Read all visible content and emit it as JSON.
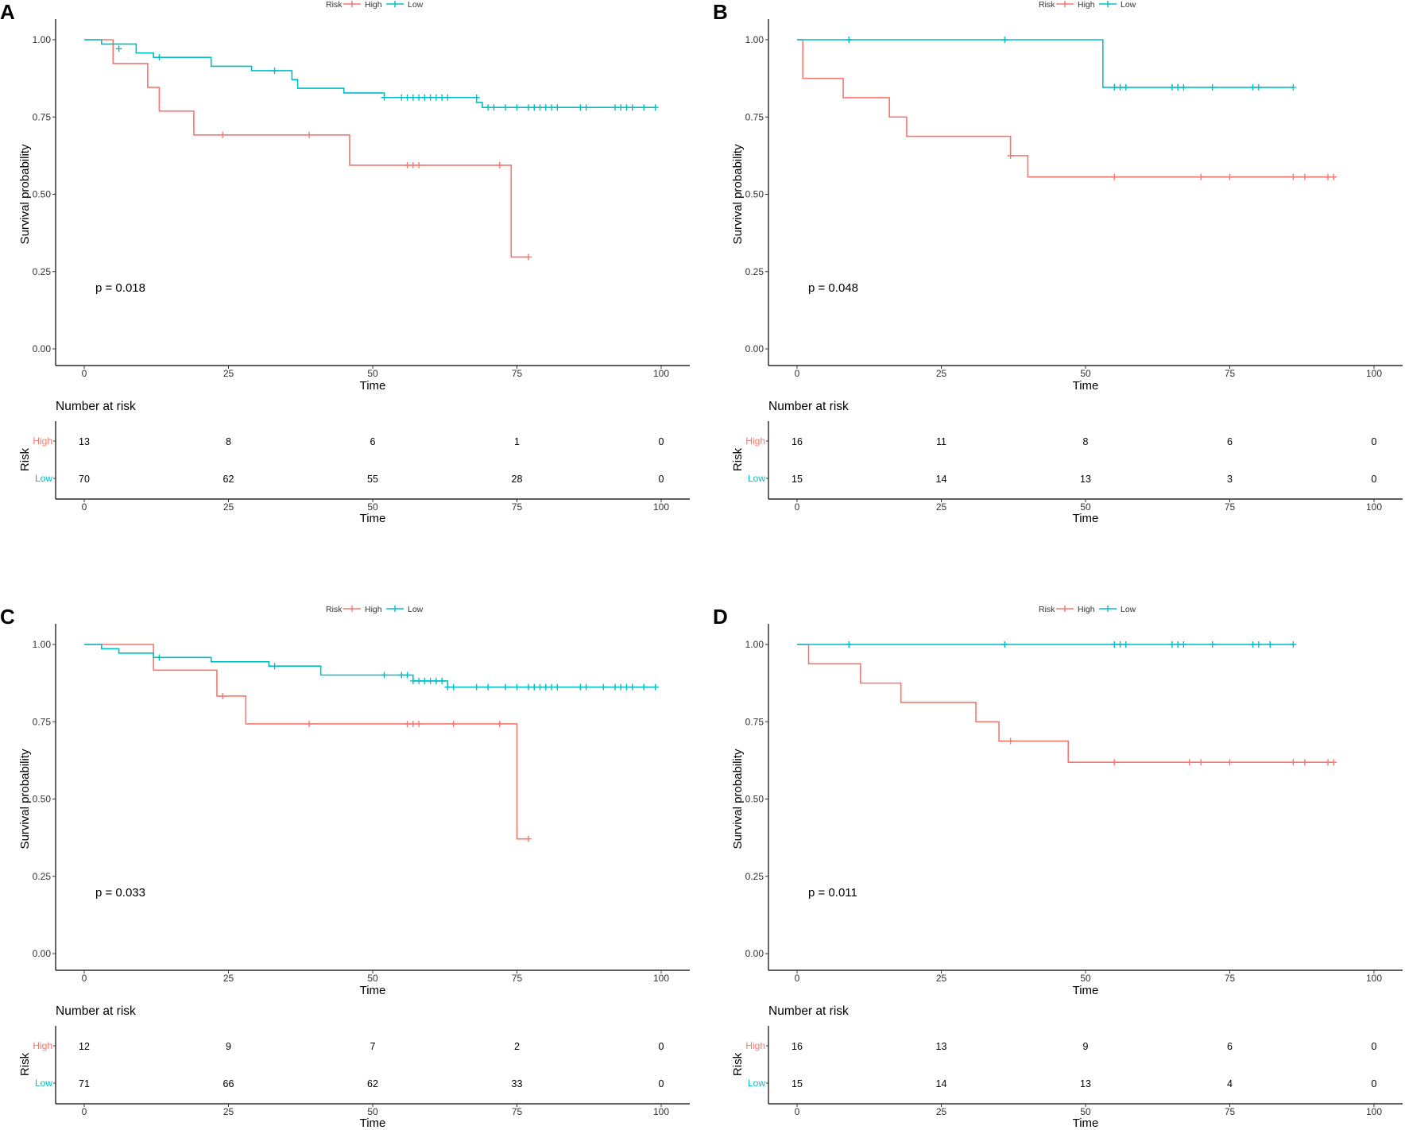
{
  "colors": {
    "high": "#F8766D",
    "low": "#00BFC4"
  },
  "chart_data": [
    {
      "panel": "A",
      "type": "line",
      "legend": {
        "title": "Risk",
        "entries": [
          "High",
          "Low"
        ],
        "placement": "top"
      },
      "xlabel": "Time",
      "ylabel": "Survival probability",
      "xlim": [
        0,
        100
      ],
      "ylim": [
        0,
        1
      ],
      "xticks": [
        "0",
        "25",
        "50",
        "75",
        "100"
      ],
      "yticks": [
        "0.00",
        "0.25",
        "0.50",
        "0.75",
        "1.00"
      ],
      "pvalue": "p = 0.018",
      "series": [
        {
          "name": "High",
          "steps": [
            [
              0,
              1
            ],
            [
              5,
              0.923
            ],
            [
              11,
              0.846
            ],
            [
              13,
              0.769
            ],
            [
              19,
              0.692
            ],
            [
              46,
              0.594
            ],
            [
              74,
              0.297
            ],
            [
              77,
              0.297
            ]
          ],
          "censors": [
            [
              24,
              0.692
            ],
            [
              39,
              0.692
            ],
            [
              56,
              0.594
            ],
            [
              57,
              0.594
            ],
            [
              58,
              0.594
            ],
            [
              72,
              0.594
            ],
            [
              77,
              0.297
            ]
          ]
        },
        {
          "name": "Low",
          "steps": [
            [
              0,
              1
            ],
            [
              3,
              0.986
            ],
            [
              9,
              0.957
            ],
            [
              12,
              0.943
            ],
            [
              22,
              0.914
            ],
            [
              29,
              0.9
            ],
            [
              36,
              0.871
            ],
            [
              37,
              0.843
            ],
            [
              45,
              0.828
            ],
            [
              52,
              0.813
            ],
            [
              68,
              0.797
            ],
            [
              69,
              0.781
            ],
            [
              99,
              0.781
            ]
          ],
          "censors": [
            [
              6,
              0.971
            ],
            [
              13,
              0.943
            ],
            [
              33,
              0.9
            ],
            [
              52,
              0.813
            ],
            [
              55,
              0.813
            ],
            [
              56,
              0.813
            ],
            [
              57,
              0.813
            ],
            [
              58,
              0.813
            ],
            [
              59,
              0.813
            ],
            [
              60,
              0.813
            ],
            [
              61,
              0.813
            ],
            [
              62,
              0.813
            ],
            [
              63,
              0.813
            ],
            [
              68,
              0.813
            ],
            [
              70,
              0.781
            ],
            [
              71,
              0.781
            ],
            [
              73,
              0.781
            ],
            [
              75,
              0.781
            ],
            [
              77,
              0.781
            ],
            [
              78,
              0.781
            ],
            [
              79,
              0.781
            ],
            [
              80,
              0.781
            ],
            [
              81,
              0.781
            ],
            [
              82,
              0.781
            ],
            [
              86,
              0.781
            ],
            [
              87,
              0.781
            ],
            [
              92,
              0.781
            ],
            [
              93,
              0.781
            ],
            [
              94,
              0.781
            ],
            [
              95,
              0.781
            ],
            [
              97,
              0.781
            ],
            [
              99,
              0.781
            ]
          ]
        }
      ],
      "risk_table": {
        "title": "Number at risk",
        "ylabel": "Risk",
        "xlabel": "Time",
        "times": [
          0,
          25,
          50,
          75,
          100
        ],
        "rows": [
          {
            "label": "High",
            "counts": [
              "13",
              "8",
              "6",
              "1",
              "0"
            ]
          },
          {
            "label": "Low",
            "counts": [
              "70",
              "62",
              "55",
              "28",
              "0"
            ]
          }
        ]
      }
    },
    {
      "panel": "B",
      "type": "line",
      "legend": {
        "title": "Risk",
        "entries": [
          "High",
          "Low"
        ],
        "placement": "top"
      },
      "xlabel": "Time",
      "ylabel": "Survival probability",
      "xlim": [
        0,
        100
      ],
      "ylim": [
        0,
        1
      ],
      "xticks": [
        "0",
        "25",
        "50",
        "75",
        "100"
      ],
      "yticks": [
        "0.00",
        "0.25",
        "0.50",
        "0.75",
        "1.00"
      ],
      "pvalue": "p = 0.048",
      "series": [
        {
          "name": "High",
          "steps": [
            [
              0,
              1
            ],
            [
              1,
              0.875
            ],
            [
              8,
              0.8125
            ],
            [
              16,
              0.75
            ],
            [
              19,
              0.6875
            ],
            [
              37,
              0.625
            ],
            [
              40,
              0.556
            ],
            [
              93,
              0.556
            ]
          ],
          "censors": [
            [
              37,
              0.625
            ],
            [
              55,
              0.556
            ],
            [
              70,
              0.556
            ],
            [
              75,
              0.556
            ],
            [
              86,
              0.556
            ],
            [
              88,
              0.556
            ],
            [
              92,
              0.556
            ],
            [
              93,
              0.556
            ]
          ]
        },
        {
          "name": "Low",
          "steps": [
            [
              0,
              1
            ],
            [
              53,
              0.846
            ],
            [
              86,
              0.846
            ]
          ],
          "censors": [
            [
              9,
              1
            ],
            [
              36,
              1
            ],
            [
              55,
              0.846
            ],
            [
              56,
              0.846
            ],
            [
              57,
              0.846
            ],
            [
              65,
              0.846
            ],
            [
              66,
              0.846
            ],
            [
              67,
              0.846
            ],
            [
              72,
              0.846
            ],
            [
              79,
              0.846
            ],
            [
              80,
              0.846
            ],
            [
              86,
              0.846
            ]
          ]
        }
      ],
      "risk_table": {
        "title": "Number at risk",
        "ylabel": "Risk",
        "xlabel": "Time",
        "times": [
          0,
          25,
          50,
          75,
          100
        ],
        "rows": [
          {
            "label": "High",
            "counts": [
              "16",
              "11",
              "8",
              "6",
              "0"
            ]
          },
          {
            "label": "Low",
            "counts": [
              "15",
              "14",
              "13",
              "3",
              "0"
            ]
          }
        ]
      }
    },
    {
      "panel": "C",
      "type": "line",
      "legend": {
        "title": "Risk",
        "entries": [
          "High",
          "Low"
        ],
        "placement": "top"
      },
      "xlabel": "Time",
      "ylabel": "Survival probability",
      "xlim": [
        0,
        100
      ],
      "ylim": [
        0,
        1
      ],
      "xticks": [
        "0",
        "25",
        "50",
        "75",
        "100"
      ],
      "yticks": [
        "0.00",
        "0.25",
        "0.50",
        "0.75",
        "1.00"
      ],
      "pvalue": "p = 0.033",
      "series": [
        {
          "name": "High",
          "steps": [
            [
              0,
              1
            ],
            [
              12,
              0.917
            ],
            [
              23,
              0.833
            ],
            [
              28,
              0.743
            ],
            [
              75,
              0.371
            ],
            [
              77,
              0.371
            ]
          ],
          "censors": [
            [
              24,
              0.833
            ],
            [
              39,
              0.743
            ],
            [
              56,
              0.743
            ],
            [
              57,
              0.743
            ],
            [
              58,
              0.743
            ],
            [
              64,
              0.743
            ],
            [
              72,
              0.743
            ],
            [
              77,
              0.371
            ]
          ]
        },
        {
          "name": "Low",
          "steps": [
            [
              0,
              1
            ],
            [
              3,
              0.986
            ],
            [
              6,
              0.972
            ],
            [
              12,
              0.958
            ],
            [
              22,
              0.944
            ],
            [
              32,
              0.93
            ],
            [
              41,
              0.901
            ],
            [
              57,
              0.882
            ],
            [
              63,
              0.862
            ],
            [
              99,
              0.862
            ]
          ],
          "censors": [
            [
              13,
              0.958
            ],
            [
              33,
              0.93
            ],
            [
              52,
              0.901
            ],
            [
              55,
              0.901
            ],
            [
              56,
              0.901
            ],
            [
              57,
              0.882
            ],
            [
              58,
              0.882
            ],
            [
              59,
              0.882
            ],
            [
              60,
              0.882
            ],
            [
              61,
              0.882
            ],
            [
              62,
              0.882
            ],
            [
              63,
              0.862
            ],
            [
              64,
              0.862
            ],
            [
              68,
              0.862
            ],
            [
              70,
              0.862
            ],
            [
              73,
              0.862
            ],
            [
              75,
              0.862
            ],
            [
              77,
              0.862
            ],
            [
              78,
              0.862
            ],
            [
              79,
              0.862
            ],
            [
              80,
              0.862
            ],
            [
              81,
              0.862
            ],
            [
              82,
              0.862
            ],
            [
              86,
              0.862
            ],
            [
              87,
              0.862
            ],
            [
              90,
              0.862
            ],
            [
              92,
              0.862
            ],
            [
              93,
              0.862
            ],
            [
              94,
              0.862
            ],
            [
              95,
              0.862
            ],
            [
              97,
              0.862
            ],
            [
              99,
              0.862
            ]
          ]
        }
      ],
      "risk_table": {
        "title": "Number at risk",
        "ylabel": "Risk",
        "xlabel": "Time",
        "times": [
          0,
          25,
          50,
          75,
          100
        ],
        "rows": [
          {
            "label": "High",
            "counts": [
              "12",
              "9",
              "7",
              "2",
              "0"
            ]
          },
          {
            "label": "Low",
            "counts": [
              "71",
              "66",
              "62",
              "33",
              "0"
            ]
          }
        ]
      }
    },
    {
      "panel": "D",
      "type": "line",
      "legend": {
        "title": "Risk",
        "entries": [
          "High",
          "Low"
        ],
        "placement": "top"
      },
      "xlabel": "Time",
      "ylabel": "Survival probability",
      "xlim": [
        0,
        100
      ],
      "ylim": [
        0,
        1
      ],
      "xticks": [
        "0",
        "25",
        "50",
        "75",
        "100"
      ],
      "yticks": [
        "0.00",
        "0.25",
        "0.50",
        "0.75",
        "1.00"
      ],
      "pvalue": "p = 0.011",
      "series": [
        {
          "name": "High",
          "steps": [
            [
              0,
              1
            ],
            [
              2,
              0.9375
            ],
            [
              11,
              0.875
            ],
            [
              18,
              0.8125
            ],
            [
              31,
              0.75
            ],
            [
              35,
              0.6875
            ],
            [
              47,
              0.619
            ],
            [
              93,
              0.619
            ]
          ],
          "censors": [
            [
              37,
              0.6875
            ],
            [
              55,
              0.619
            ],
            [
              68,
              0.619
            ],
            [
              70,
              0.619
            ],
            [
              75,
              0.619
            ],
            [
              86,
              0.619
            ],
            [
              88,
              0.619
            ],
            [
              92,
              0.619
            ],
            [
              93,
              0.619
            ]
          ]
        },
        {
          "name": "Low",
          "steps": [
            [
              0,
              1
            ],
            [
              86,
              1
            ]
          ],
          "censors": [
            [
              9,
              1
            ],
            [
              36,
              1
            ],
            [
              55,
              1
            ],
            [
              56,
              1
            ],
            [
              57,
              1
            ],
            [
              65,
              1
            ],
            [
              66,
              1
            ],
            [
              67,
              1
            ],
            [
              72,
              1
            ],
            [
              79,
              1
            ],
            [
              80,
              1
            ],
            [
              82,
              1
            ],
            [
              86,
              1
            ]
          ]
        }
      ],
      "risk_table": {
        "title": "Number at risk",
        "ylabel": "Risk",
        "xlabel": "Time",
        "times": [
          0,
          25,
          50,
          75,
          100
        ],
        "rows": [
          {
            "label": "High",
            "counts": [
              "16",
              "13",
              "9",
              "6",
              "0"
            ]
          },
          {
            "label": "Low",
            "counts": [
              "15",
              "14",
              "13",
              "4",
              "0"
            ]
          }
        ]
      }
    }
  ]
}
